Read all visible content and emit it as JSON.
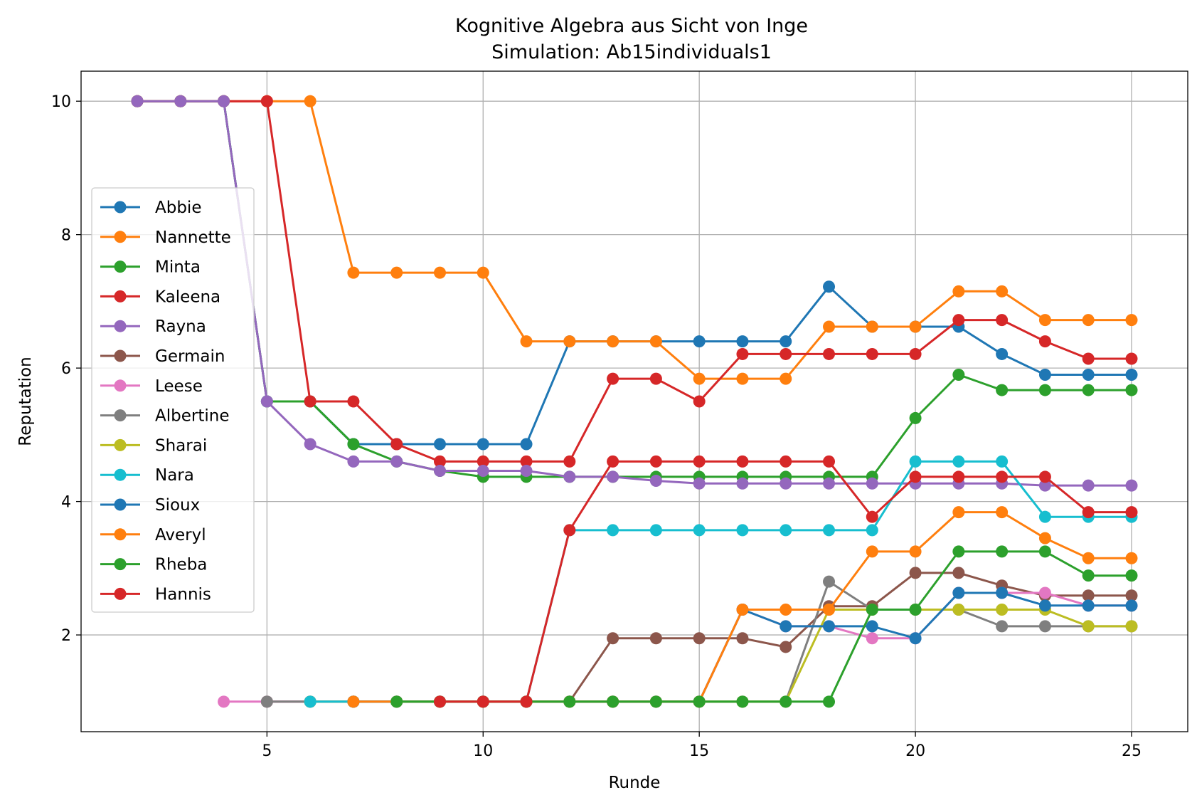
{
  "chart_data": {
    "type": "line",
    "title": "Kognitive Algebra aus Sicht von Inge",
    "subtitle": "Simulation: Ab15individuals1",
    "xlabel": "Runde",
    "ylabel": "Reputation",
    "xlim": [
      0.7,
      26.3
    ],
    "ylim": [
      0.55,
      10.45
    ],
    "xticks": [
      5,
      10,
      15,
      20,
      25
    ],
    "yticks": [
      2,
      4,
      6,
      8,
      10
    ],
    "grid": true,
    "legend_position": "center-left",
    "series": [
      {
        "name": "Abbie",
        "color": "#1f77b4",
        "x": [
          2,
          3,
          4,
          5,
          6,
          7,
          8,
          9,
          10,
          11,
          12,
          13,
          14,
          15,
          16,
          17,
          18,
          19,
          20,
          21,
          22,
          23,
          24,
          25
        ],
        "y": [
          10,
          10,
          10,
          5.5,
          5.5,
          4.86,
          4.86,
          4.86,
          4.86,
          4.86,
          6.4,
          6.4,
          6.4,
          6.4,
          6.4,
          6.4,
          7.22,
          6.62,
          6.62,
          6.62,
          6.21,
          5.9,
          5.9,
          5.9
        ]
      },
      {
        "name": "Nannette",
        "color": "#ff7f0e",
        "x": [
          2,
          3,
          4,
          5,
          6,
          7,
          8,
          9,
          10,
          11,
          12,
          13,
          14,
          15,
          16,
          17,
          18,
          19,
          20,
          21,
          22,
          23,
          24,
          25
        ],
        "y": [
          10,
          10,
          10,
          10,
          10,
          7.43,
          7.43,
          7.43,
          7.43,
          6.4,
          6.4,
          6.4,
          6.4,
          5.84,
          5.84,
          5.84,
          6.62,
          6.62,
          6.62,
          7.15,
          7.15,
          6.72,
          6.72,
          6.72
        ]
      },
      {
        "name": "Minta",
        "color": "#2ca02c",
        "x": [
          2,
          3,
          4,
          5,
          6,
          7,
          8,
          9,
          10,
          11,
          12,
          13,
          14,
          15,
          16,
          17,
          18,
          19,
          20,
          21,
          22,
          23,
          24,
          25
        ],
        "y": [
          10,
          10,
          10,
          5.5,
          5.5,
          4.86,
          4.6,
          4.46,
          4.37,
          4.37,
          4.37,
          4.37,
          4.37,
          4.37,
          4.37,
          4.37,
          4.37,
          4.37,
          5.25,
          5.9,
          5.67,
          5.67,
          5.67,
          5.67
        ]
      },
      {
        "name": "Kaleena",
        "color": "#d62728",
        "x": [
          2,
          3,
          4,
          5,
          6,
          7,
          8,
          9,
          10,
          11,
          12,
          13,
          14,
          15,
          16,
          17,
          18,
          19,
          20,
          21,
          22,
          23,
          24,
          25
        ],
        "y": [
          10,
          10,
          10,
          10,
          5.5,
          5.5,
          4.86,
          4.6,
          4.6,
          4.6,
          4.6,
          5.84,
          5.84,
          5.5,
          6.21,
          6.21,
          6.21,
          6.21,
          6.21,
          6.72,
          6.72,
          6.4,
          6.14,
          6.14
        ]
      },
      {
        "name": "Rayna",
        "color": "#9467bd",
        "x": [
          2,
          3,
          4,
          5,
          6,
          7,
          8,
          9,
          10,
          11,
          12,
          13,
          14,
          15,
          16,
          17,
          18,
          19,
          20,
          21,
          22,
          23,
          24,
          25
        ],
        "y": [
          10,
          10,
          10,
          5.5,
          4.86,
          4.6,
          4.6,
          4.46,
          4.46,
          4.46,
          4.37,
          4.37,
          4.31,
          4.27,
          4.27,
          4.27,
          4.27,
          4.27,
          4.27,
          4.27,
          4.27,
          4.24,
          4.24,
          4.24
        ]
      },
      {
        "name": "Germain",
        "color": "#8c564b",
        "x": [
          5,
          6,
          7,
          8,
          9,
          10,
          11,
          12,
          13,
          14,
          15,
          16,
          17,
          18,
          19,
          20,
          21,
          22,
          23,
          24,
          25
        ],
        "y": [
          1,
          1,
          1,
          1,
          1,
          1,
          1,
          1,
          1.95,
          1.95,
          1.95,
          1.95,
          1.82,
          2.43,
          2.43,
          2.93,
          2.93,
          2.74,
          2.59,
          2.59,
          2.59
        ]
      },
      {
        "name": "Leese",
        "color": "#e377c2",
        "x": [
          4,
          5,
          6,
          7,
          8,
          9,
          10,
          11,
          12,
          13,
          14,
          15,
          16,
          17,
          18,
          19,
          20,
          21,
          22,
          23,
          24,
          25
        ],
        "y": [
          1,
          1,
          1,
          1,
          1,
          1,
          1,
          1,
          1,
          1,
          1,
          1,
          2.38,
          2.13,
          2.13,
          1.95,
          1.95,
          2.63,
          2.63,
          2.63,
          2.44,
          2.44
        ]
      },
      {
        "name": "Albertine",
        "color": "#7f7f7f",
        "x": [
          5,
          6,
          7,
          8,
          9,
          10,
          11,
          12,
          13,
          14,
          15,
          16,
          17,
          18,
          19,
          20,
          21,
          22,
          23,
          24,
          25
        ],
        "y": [
          1,
          1,
          1,
          1,
          1,
          1,
          1,
          1,
          1,
          1,
          1,
          1,
          1,
          2.8,
          2.38,
          2.38,
          2.38,
          2.13,
          2.13,
          2.13,
          2.13
        ]
      },
      {
        "name": "Sharai",
        "color": "#bcbd22",
        "x": [
          6,
          7,
          8,
          9,
          10,
          11,
          12,
          13,
          14,
          15,
          16,
          17,
          18,
          19,
          20,
          21,
          22,
          23,
          24,
          25
        ],
        "y": [
          1,
          1,
          1,
          1,
          1,
          1,
          1,
          1,
          1,
          1,
          1,
          1,
          2.38,
          2.38,
          2.38,
          2.38,
          2.38,
          2.38,
          2.13,
          2.13
        ]
      },
      {
        "name": "Nara",
        "color": "#17becf",
        "x": [
          6,
          7,
          8,
          9,
          10,
          11,
          12,
          13,
          14,
          15,
          16,
          17,
          18,
          19,
          20,
          21,
          22,
          23,
          24,
          25
        ],
        "y": [
          1,
          1,
          1,
          1,
          1,
          1,
          3.57,
          3.57,
          3.57,
          3.57,
          3.57,
          3.57,
          3.57,
          3.57,
          4.6,
          4.6,
          4.6,
          3.77,
          3.77,
          3.77
        ]
      },
      {
        "name": "Sioux",
        "color": "#1f77b4",
        "x": [
          7,
          8,
          9,
          10,
          11,
          12,
          13,
          14,
          15,
          16,
          17,
          18,
          19,
          20,
          21,
          22,
          23,
          24,
          25
        ],
        "y": [
          1,
          1,
          1,
          1,
          1,
          1,
          1,
          1,
          1,
          2.38,
          2.13,
          2.13,
          2.13,
          1.95,
          2.63,
          2.63,
          2.44,
          2.44,
          2.44
        ]
      },
      {
        "name": "Averyl",
        "color": "#ff7f0e",
        "x": [
          7,
          8,
          9,
          10,
          11,
          12,
          13,
          14,
          15,
          16,
          17,
          18,
          19,
          20,
          21,
          22,
          23,
          24,
          25
        ],
        "y": [
          1,
          1,
          1,
          1,
          1,
          1,
          1,
          1,
          1,
          2.38,
          2.38,
          2.38,
          3.25,
          3.25,
          3.84,
          3.84,
          3.45,
          3.15,
          3.15
        ]
      },
      {
        "name": "Rheba",
        "color": "#2ca02c",
        "x": [
          8,
          9,
          10,
          11,
          12,
          13,
          14,
          15,
          16,
          17,
          18,
          19,
          20,
          21,
          22,
          23,
          24,
          25
        ],
        "y": [
          1,
          1,
          1,
          1,
          1,
          1,
          1,
          1,
          1,
          1,
          1,
          2.38,
          2.38,
          3.25,
          3.25,
          3.25,
          2.89,
          2.89
        ]
      },
      {
        "name": "Hannis",
        "color": "#d62728",
        "x": [
          9,
          10,
          11,
          12,
          13,
          14,
          15,
          16,
          17,
          18,
          19,
          20,
          21,
          22,
          23,
          24,
          25
        ],
        "y": [
          1,
          1,
          1,
          3.57,
          4.6,
          4.6,
          4.6,
          4.6,
          4.6,
          4.6,
          3.77,
          4.37,
          4.37,
          4.37,
          4.37,
          3.84,
          3.84
        ]
      }
    ]
  }
}
